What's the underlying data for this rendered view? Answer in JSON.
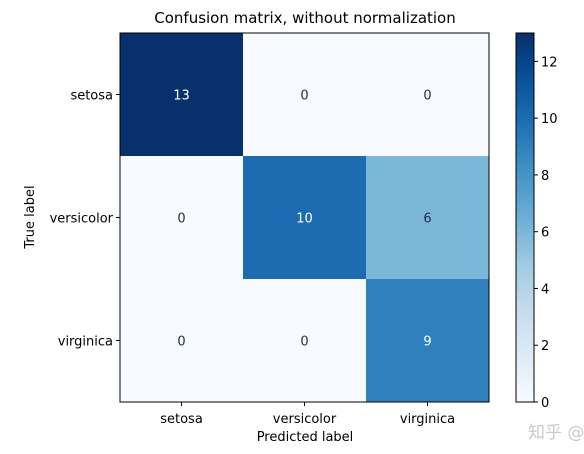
{
  "chart_data": {
    "type": "heatmap",
    "title": "Confusion matrix, without normalization",
    "xlabel": "Predicted label",
    "ylabel": "True label",
    "x_categories": [
      "setosa",
      "versicolor",
      "virginica"
    ],
    "y_categories": [
      "setosa",
      "versicolor",
      "virginica"
    ],
    "values": [
      [
        13,
        0,
        0
      ],
      [
        0,
        10,
        6
      ],
      [
        0,
        0,
        9
      ]
    ],
    "colormap": "Blues",
    "colorbar": {
      "range": [
        0,
        13
      ],
      "ticks": [
        0,
        2,
        4,
        6,
        8,
        10,
        12
      ]
    }
  },
  "watermark": {
    "text": "知乎 @"
  }
}
